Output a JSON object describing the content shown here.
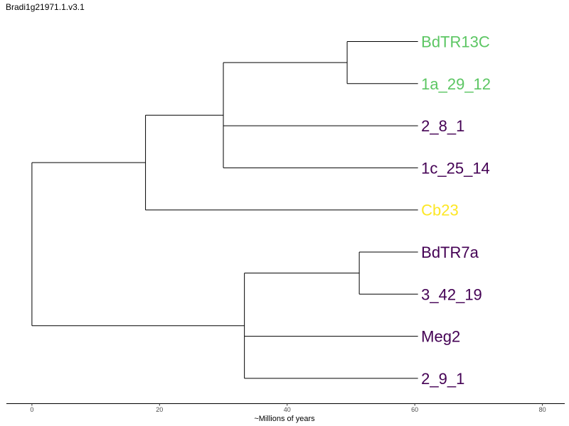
{
  "chart_data": {
    "type": "dendrogram",
    "title": "Bradi1g21971.1.v3.1",
    "xlabel": "~Millions of years",
    "xlim": [
      -4,
      83.5
    ],
    "xticks": [
      0,
      20,
      40,
      60,
      80
    ],
    "label_x": 61,
    "tips": [
      {
        "name": "BdTR13C",
        "color": "#5cc663"
      },
      {
        "name": "1a_29_12",
        "color": "#5cc663"
      },
      {
        "name": "2_8_1",
        "color": "#440154"
      },
      {
        "name": "1c_25_14",
        "color": "#440154"
      },
      {
        "name": "Cb23",
        "color": "#fde725"
      },
      {
        "name": "BdTR7a",
        "color": "#440154"
      },
      {
        "name": "3_42_19",
        "color": "#440154"
      },
      {
        "name": "Meg2",
        "color": "#440154"
      },
      {
        "name": "2_9_1",
        "color": "#440154"
      }
    ],
    "tree": {
      "x": 0,
      "children": [
        {
          "x": 17.8,
          "children": [
            {
              "x": 30,
              "children": [
                {
                  "x": 49.4,
                  "children": [
                    {
                      "tip": 0,
                      "x": 60.5
                    },
                    {
                      "tip": 1,
                      "x": 60.5
                    }
                  ]
                },
                {
                  "tip": 2,
                  "x": 60.5
                },
                {
                  "tip": 3,
                  "x": 60.5
                }
              ]
            },
            {
              "tip": 4,
              "x": 60.5
            }
          ]
        },
        {
          "x": 33.3,
          "children": [
            {
              "x": 51.3,
              "children": [
                {
                  "tip": 5,
                  "x": 60.5
                },
                {
                  "tip": 6,
                  "x": 60.5
                }
              ]
            },
            {
              "tip": 7,
              "x": 60.5
            },
            {
              "tip": 8,
              "x": 60.5
            }
          ]
        }
      ]
    }
  }
}
